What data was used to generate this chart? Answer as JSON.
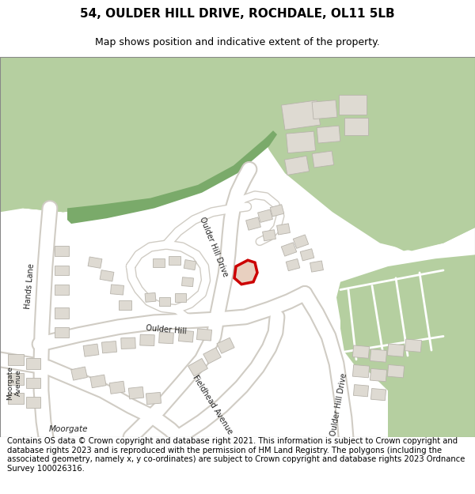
{
  "title_line1": "54, OULDER HILL DRIVE, ROCHDALE, OL11 5LB",
  "title_line2": "Map shows position and indicative extent of the property.",
  "footer_text": "Contains OS data © Crown copyright and database right 2021. This information is subject to Crown copyright and database rights 2023 and is reproduced with the permission of HM Land Registry. The polygons (including the associated geometry, namely x, y co-ordinates) are subject to Crown copyright and database rights 2023 Ordnance Survey 100026316.",
  "bg_color": "#e8e4dc",
  "green_light": "#b5cfa0",
  "green_dark": "#7aaa6a",
  "road_white": "#f0eeea",
  "road_line": "#d0ccc4",
  "building_fill": "#dedad2",
  "building_edge": "#b8b4ac",
  "highlight_fill": "#e8d0c0",
  "highlight_edge": "#cc0000",
  "white": "#ffffff",
  "title_fontsize": 11,
  "subtitle_fontsize": 9,
  "footer_fontsize": 7.2
}
